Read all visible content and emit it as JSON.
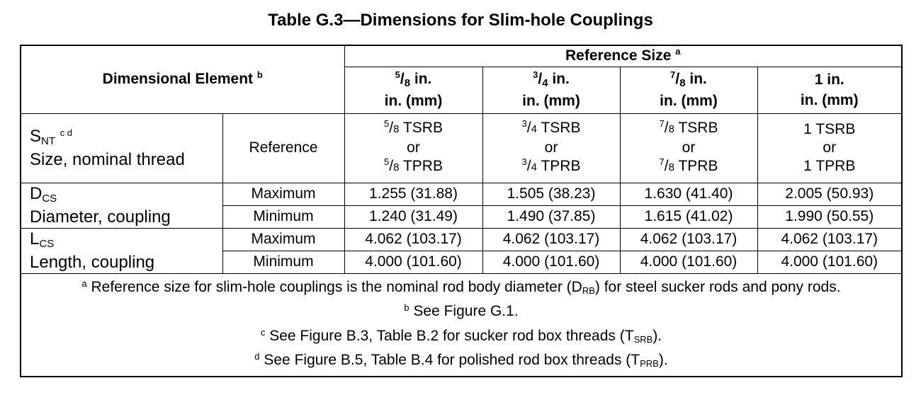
{
  "title": "Table G.3—Dimensions for Slim-hole Couplings",
  "header": {
    "element_label": "Dimensional Element",
    "element_note": "b",
    "reference_label": "Reference Size",
    "reference_note": "a",
    "sizes": [
      {
        "num": "5",
        "den": "8",
        "unit": "in.",
        "units": "in. (mm)"
      },
      {
        "num": "3",
        "den": "4",
        "unit": "in.",
        "units": "in. (mm)"
      },
      {
        "num": "7",
        "den": "8",
        "unit": "in.",
        "units": "in. (mm)"
      },
      {
        "whole": "1",
        "unit": "in.",
        "units": "in. (mm)"
      }
    ]
  },
  "thread_row": {
    "symbol_main": "S",
    "symbol_sub": "NT",
    "symbol_notes": "c d",
    "name": "Size, nominal thread",
    "qualifier": "Reference",
    "or": "or",
    "cells": [
      {
        "num": "5",
        "den": "8",
        "top": "TSRB",
        "bottom": "TPRB"
      },
      {
        "num": "3",
        "den": "4",
        "top": "TSRB",
        "bottom": "TPRB"
      },
      {
        "num": "7",
        "den": "8",
        "top": "TSRB",
        "bottom": "TPRB"
      },
      {
        "whole": "1",
        "top": "TSRB",
        "bottom": "TPRB"
      }
    ]
  },
  "rows": [
    {
      "symbol_main": "D",
      "symbol_sub": "CS",
      "name": "Diameter, coupling",
      "max_label": "Maximum",
      "min_label": "Minimum",
      "max": [
        "1.255 (31.88)",
        "1.505 (38.23)",
        "1.630 (41.40)",
        "2.005 (50.93)"
      ],
      "min": [
        "1.240 (31.49)",
        "1.490 (37.85)",
        "1.615 (41.02)",
        "1.990 (50.55)"
      ]
    },
    {
      "symbol_main": "L",
      "symbol_sub": "CS",
      "name": "Length, coupling",
      "max_label": "Maximum",
      "min_label": "Minimum",
      "max": [
        "4.062 (103.17)",
        "4.062 (103.17)",
        "4.062 (103.17)",
        "4.062 (103.17)"
      ],
      "min": [
        "4.000 (101.60)",
        "4.000 (101.60)",
        "4.000 (101.60)",
        "4.000 (101.60)"
      ]
    }
  ],
  "footnotes": [
    {
      "mark": "a",
      "pre": "Reference size for slim-hole couplings is the nominal rod body diameter (D",
      "sub": "RB",
      "post": ") for steel sucker rods and pony rods."
    },
    {
      "mark": "b",
      "pre": "See Figure G.1.",
      "sub": "",
      "post": ""
    },
    {
      "mark": "c",
      "pre": "See Figure B.3, Table B.2 for sucker rod box threads (T",
      "sub": "SRB",
      "post": ")."
    },
    {
      "mark": "d",
      "pre": "See Figure B.5, Table B.4 for polished rod box threads (T",
      "sub": "PRB",
      "post": ")."
    }
  ]
}
